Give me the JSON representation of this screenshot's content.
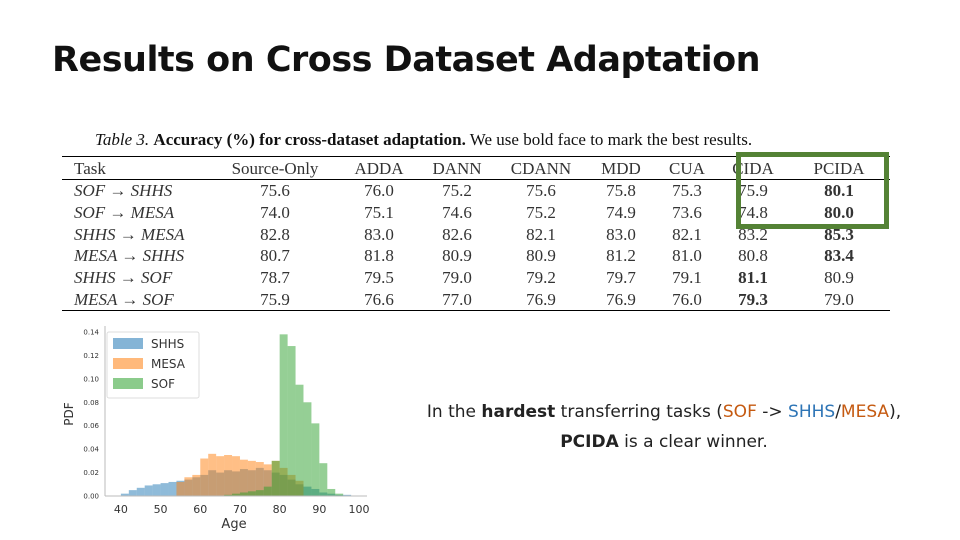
{
  "slide": {
    "title": "Results on Cross Dataset Adaptation"
  },
  "table": {
    "caption_label": "Table 3.",
    "caption_bold": "Accuracy (%) for cross-dataset adaptation.",
    "caption_rest": "We use bold face to mark the best results.",
    "headers": [
      "Task",
      "Source-Only",
      "ADDA",
      "DANN",
      "CDANN",
      "MDD",
      "CUA",
      "CIDA",
      "PCIDA"
    ],
    "rows": [
      {
        "task": "SOF → SHHS",
        "values": [
          "75.6",
          "76.0",
          "75.2",
          "75.6",
          "75.8",
          "75.3",
          "75.9",
          "80.1"
        ],
        "best": 7
      },
      {
        "task": "SOF → MESA",
        "values": [
          "74.0",
          "75.1",
          "74.6",
          "75.2",
          "74.9",
          "73.6",
          "74.8",
          "80.0"
        ],
        "best": 7
      },
      {
        "task": "SHHS → MESA",
        "values": [
          "82.8",
          "83.0",
          "82.6",
          "82.1",
          "83.0",
          "82.1",
          "83.2",
          "85.3"
        ],
        "best": 7
      },
      {
        "task": "MESA → SHHS",
        "values": [
          "80.7",
          "81.8",
          "80.9",
          "80.9",
          "81.2",
          "81.0",
          "80.8",
          "83.4"
        ],
        "best": 7
      },
      {
        "task": "SHHS → SOF",
        "values": [
          "78.7",
          "79.5",
          "79.0",
          "79.2",
          "79.7",
          "79.1",
          "81.1",
          "80.9"
        ],
        "best": 6
      },
      {
        "task": "MESA → SOF",
        "values": [
          "75.9",
          "76.6",
          "77.0",
          "76.9",
          "76.9",
          "76.0",
          "79.3",
          "79.0"
        ],
        "best": 6
      }
    ]
  },
  "highlight": {
    "color": "#548235"
  },
  "chart_data": {
    "type": "histogram",
    "xlabel": "Age",
    "ylabel": "PDF",
    "xlim": [
      36,
      102
    ],
    "ylim": [
      0,
      0.14
    ],
    "xticks": [
      40,
      50,
      60,
      70,
      80,
      90,
      100
    ],
    "yticks": [
      "0.00",
      "0.02",
      "0.04",
      "0.06",
      "0.08",
      "0.10",
      "0.12",
      "0.14"
    ],
    "series": [
      {
        "name": "SHHS",
        "color": "#1f77b4",
        "bins": [
          [
            40,
            42,
            0.002
          ],
          [
            42,
            44,
            0.005
          ],
          [
            44,
            46,
            0.007
          ],
          [
            46,
            48,
            0.009
          ],
          [
            48,
            50,
            0.01
          ],
          [
            50,
            52,
            0.011
          ],
          [
            52,
            54,
            0.012
          ],
          [
            54,
            56,
            0.013
          ],
          [
            56,
            58,
            0.014
          ],
          [
            58,
            60,
            0.016
          ],
          [
            60,
            62,
            0.018
          ],
          [
            62,
            64,
            0.022
          ],
          [
            64,
            66,
            0.02
          ],
          [
            66,
            68,
            0.022
          ],
          [
            68,
            70,
            0.021
          ],
          [
            70,
            72,
            0.023
          ],
          [
            72,
            74,
            0.022
          ],
          [
            74,
            76,
            0.024
          ],
          [
            76,
            78,
            0.022
          ],
          [
            78,
            80,
            0.02
          ],
          [
            80,
            82,
            0.018
          ],
          [
            82,
            84,
            0.014
          ],
          [
            84,
            86,
            0.01
          ],
          [
            86,
            88,
            0.008
          ],
          [
            88,
            90,
            0.006
          ],
          [
            90,
            92,
            0.003
          ],
          [
            92,
            94,
            0.002
          ],
          [
            94,
            96,
            0.001
          ],
          [
            96,
            98,
            0.001
          ]
        ]
      },
      {
        "name": "MESA",
        "color": "#ff7f0e",
        "bins": [
          [
            54,
            56,
            0.012
          ],
          [
            56,
            58,
            0.016
          ],
          [
            58,
            60,
            0.018
          ],
          [
            60,
            62,
            0.032
          ],
          [
            62,
            64,
            0.036
          ],
          [
            64,
            66,
            0.034
          ],
          [
            66,
            68,
            0.035
          ],
          [
            68,
            70,
            0.034
          ],
          [
            70,
            72,
            0.031
          ],
          [
            72,
            74,
            0.03
          ],
          [
            74,
            76,
            0.029
          ],
          [
            76,
            78,
            0.027
          ],
          [
            78,
            80,
            0.03
          ],
          [
            80,
            82,
            0.024
          ],
          [
            82,
            84,
            0.018
          ],
          [
            84,
            86,
            0.013
          ]
        ]
      },
      {
        "name": "SOF",
        "color": "#2ca02c",
        "bins": [
          [
            66,
            68,
            0.001
          ],
          [
            68,
            70,
            0.002
          ],
          [
            70,
            72,
            0.003
          ],
          [
            72,
            74,
            0.004
          ],
          [
            74,
            76,
            0.005
          ],
          [
            76,
            78,
            0.008
          ],
          [
            78,
            80,
            0.03
          ],
          [
            80,
            82,
            0.138
          ],
          [
            82,
            84,
            0.128
          ],
          [
            84,
            86,
            0.095
          ],
          [
            86,
            88,
            0.08
          ],
          [
            88,
            90,
            0.062
          ],
          [
            90,
            92,
            0.028
          ],
          [
            92,
            94,
            0.006
          ],
          [
            94,
            96,
            0.002
          ]
        ]
      }
    ]
  },
  "caption": {
    "part1": "In the ",
    "bold1": "hardest",
    "part2": " transferring tasks (",
    "sof": "SOF",
    "arrow": " -> ",
    "shhs": "SHHS",
    "slash": "/",
    "mesa": "MESA",
    "part3": "),",
    "bold2": "PCIDA",
    "part4": " is a clear winner."
  }
}
